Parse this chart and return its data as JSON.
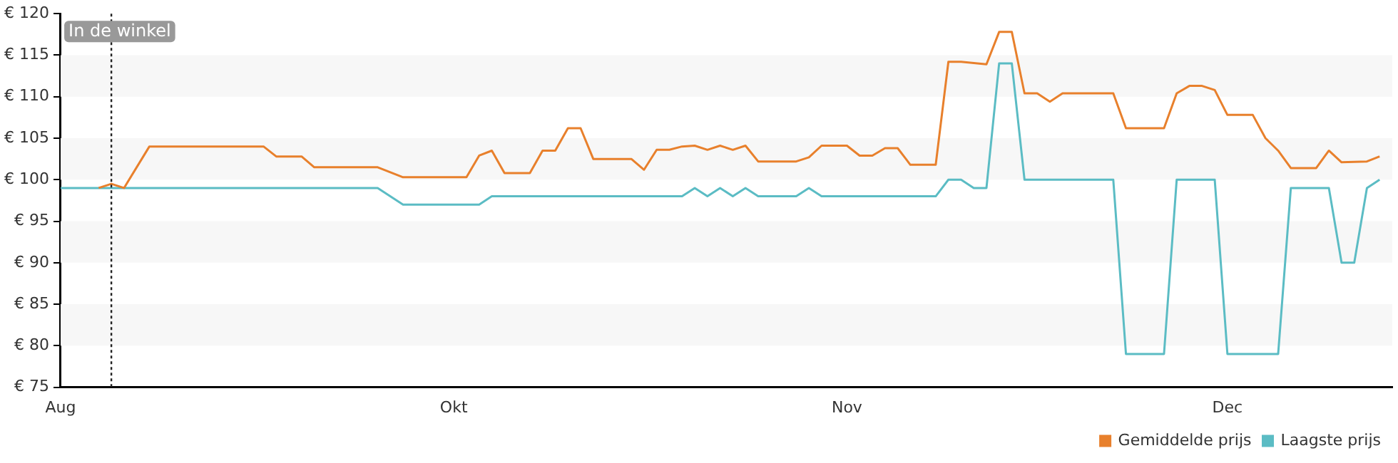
{
  "chart_data": {
    "type": "line",
    "xlim": [
      "--08-31",
      "--12-14"
    ],
    "xticks": [
      {
        "value": "--08-31",
        "label": "Aug"
      },
      {
        "value": "--10-01",
        "label": "Okt"
      },
      {
        "value": "--11-01",
        "label": "Nov"
      },
      {
        "value": "--12-01",
        "label": "Dec"
      }
    ],
    "ylim": [
      75,
      120
    ],
    "yticks": [
      {
        "value": 75,
        "label": "€ 75"
      },
      {
        "value": 80,
        "label": "€ 80"
      },
      {
        "value": 85,
        "label": "€ 85"
      },
      {
        "value": 90,
        "label": "€ 90"
      },
      {
        "value": 95,
        "label": "€ 95"
      },
      {
        "value": 100,
        "label": "€ 100"
      },
      {
        "value": 105,
        "label": "€ 105"
      },
      {
        "value": 110,
        "label": "€ 110"
      },
      {
        "value": 115,
        "label": "€ 115"
      },
      {
        "value": 120,
        "label": "€ 120"
      }
    ],
    "bands": [
      {
        "axis": "y",
        "from": 80,
        "to": 85,
        "color": "#f7f7f7"
      },
      {
        "axis": "y",
        "from": 90,
        "to": 95,
        "color": "#f7f7f7"
      },
      {
        "axis": "y",
        "from": 100,
        "to": 105,
        "color": "#f7f7f7"
      },
      {
        "axis": "y",
        "from": 110,
        "to": 115,
        "color": "#f7f7f7"
      }
    ],
    "legend": "bottom right",
    "marker": "none",
    "line_style": "solid",
    "ref_lines": [
      {
        "axis": "x",
        "value": "--09-04",
        "label": "In de winkel",
        "line_style": "dotted",
        "color": "#222222"
      }
    ],
    "series": [
      {
        "name": "Gemiddelde prijs",
        "color": "#e8802c",
        "x": [
          "--09-03",
          "--09-04",
          "--09-05",
          "--09-07",
          "--09-16",
          "--09-17",
          "--09-19",
          "--09-20",
          "--09-25",
          "--09-27",
          "--10-02",
          "--10-03",
          "--10-04",
          "--10-05",
          "--10-07",
          "--10-08",
          "--10-09",
          "--10-10",
          "--10-11",
          "--10-12",
          "--10-15",
          "--10-16",
          "--10-17",
          "--10-18",
          "--10-19",
          "--10-20",
          "--10-21",
          "--10-22",
          "--10-23",
          "--10-24",
          "--10-25",
          "--10-28",
          "--10-29",
          "--10-30",
          "--11-01",
          "--11-02",
          "--11-03",
          "--11-04",
          "--11-05",
          "--11-06",
          "--11-08",
          "--11-09",
          "--11-10",
          "--11-12",
          "--11-13",
          "--11-14",
          "--11-15",
          "--11-16",
          "--11-17",
          "--11-18",
          "--11-22",
          "--11-23",
          "--11-26",
          "--11-27",
          "--11-28",
          "--11-29",
          "--11-30",
          "--12-01",
          "--12-03",
          "--12-04",
          "--12-05",
          "--12-06",
          "--12-08",
          "--12-09",
          "--12-10",
          "--12-12",
          "--12-13"
        ],
        "values": [
          99,
          99.5,
          99,
          104,
          104,
          102.8,
          102.8,
          101.5,
          101.5,
          100.3,
          100.3,
          102.9,
          103.5,
          100.8,
          100.8,
          103.5,
          103.5,
          106.2,
          106.2,
          102.5,
          102.5,
          101.2,
          103.6,
          103.6,
          104,
          104.1,
          103.6,
          104.1,
          103.6,
          104.1,
          102.2,
          102.2,
          102.7,
          104.1,
          104.1,
          102.9,
          102.9,
          103.8,
          103.8,
          101.8,
          101.8,
          114.2,
          114.2,
          113.9,
          117.8,
          117.8,
          110.4,
          110.4,
          109.4,
          110.4,
          110.4,
          106.2,
          106.2,
          110.4,
          111.3,
          111.3,
          110.8,
          107.8,
          107.8,
          105,
          103.5,
          101.4,
          101.4,
          103.5,
          102.1,
          102.2,
          102.8
        ]
      },
      {
        "name": "Laagste prijs",
        "color": "#5bbcc4",
        "x": [
          "--08-31",
          "--09-25",
          "--09-27",
          "--10-03",
          "--10-04",
          "--10-19",
          "--10-20",
          "--10-21",
          "--10-22",
          "--10-23",
          "--10-24",
          "--10-25",
          "--10-28",
          "--10-29",
          "--10-30",
          "--11-08",
          "--11-09",
          "--11-10",
          "--11-11",
          "--11-12",
          "--11-13",
          "--11-14",
          "--11-15",
          "--11-22",
          "--11-23",
          "--11-26",
          "--11-27",
          "--11-30",
          "--12-01",
          "--12-05",
          "--12-06",
          "--12-09",
          "--12-10",
          "--12-11",
          "--12-12",
          "--12-13"
        ],
        "values": [
          99,
          99,
          97,
          97,
          98,
          98,
          99,
          98,
          99,
          98,
          99,
          98,
          98,
          99,
          98,
          98,
          100,
          100,
          99,
          99,
          114,
          114,
          100,
          100,
          79,
          79,
          100,
          100,
          79,
          79,
          99,
          99,
          90,
          90,
          99,
          100
        ]
      }
    ]
  }
}
